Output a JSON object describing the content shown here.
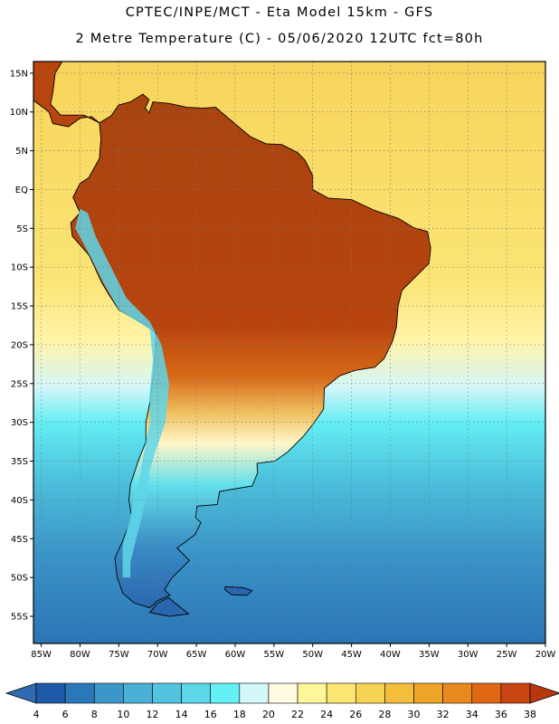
{
  "header": {
    "line1": "CPTEC/INPE/MCT -  Eta Model 15km - GFS",
    "line2": "2 Metre Temperature (C) - 05/06/2020 12UTC fct=80h"
  },
  "map": {
    "lon_range": [
      -86,
      -20
    ],
    "lat_range": [
      -58.5,
      16.5
    ],
    "lat_ticks": [
      {
        "value": 15,
        "label": "15N"
      },
      {
        "value": 10,
        "label": "10N"
      },
      {
        "value": 5,
        "label": "5N"
      },
      {
        "value": 0,
        "label": "EQ"
      },
      {
        "value": -5,
        "label": "5S"
      },
      {
        "value": -10,
        "label": "10S"
      },
      {
        "value": -15,
        "label": "15S"
      },
      {
        "value": -20,
        "label": "20S"
      },
      {
        "value": -25,
        "label": "25S"
      },
      {
        "value": -30,
        "label": "30S"
      },
      {
        "value": -35,
        "label": "35S"
      },
      {
        "value": -40,
        "label": "40S"
      },
      {
        "value": -45,
        "label": "45S"
      },
      {
        "value": -50,
        "label": "50S"
      },
      {
        "value": -55,
        "label": "55S"
      }
    ],
    "lon_ticks": [
      {
        "value": -85,
        "label": "85W"
      },
      {
        "value": -80,
        "label": "80W"
      },
      {
        "value": -75,
        "label": "75W"
      },
      {
        "value": -70,
        "label": "70W"
      },
      {
        "value": -65,
        "label": "65W"
      },
      {
        "value": -60,
        "label": "60W"
      },
      {
        "value": -55,
        "label": "55W"
      },
      {
        "value": -50,
        "label": "50W"
      },
      {
        "value": -45,
        "label": "45W"
      },
      {
        "value": -40,
        "label": "40W"
      },
      {
        "value": -35,
        "label": "35W"
      },
      {
        "value": -30,
        "label": "30W"
      },
      {
        "value": -25,
        "label": "25W"
      },
      {
        "value": -20,
        "label": "20W"
      }
    ]
  },
  "colorbar": {
    "labels": [
      "4",
      "6",
      "8",
      "10",
      "12",
      "14",
      "16",
      "18",
      "20",
      "22",
      "24",
      "26",
      "28",
      "30",
      "32",
      "34",
      "36",
      "38"
    ],
    "colors": [
      "#1e5aa8",
      "#2a78b8",
      "#3c96c8",
      "#4ab0d6",
      "#52c4e0",
      "#5cd8ea",
      "#64f0f4",
      "#d2f8fa",
      "#fffae0",
      "#fff59a",
      "#fbe573",
      "#f6d355",
      "#f2be3c",
      "#eda427",
      "#e88a1d",
      "#e06814",
      "#c84410"
    ],
    "under_color": "#2f6bb0",
    "over_color": "#b8380e"
  },
  "land_names": [
    "south-america-continent",
    "central-america-isthmus",
    "falkland-islands",
    "tierra-del-fuego"
  ]
}
